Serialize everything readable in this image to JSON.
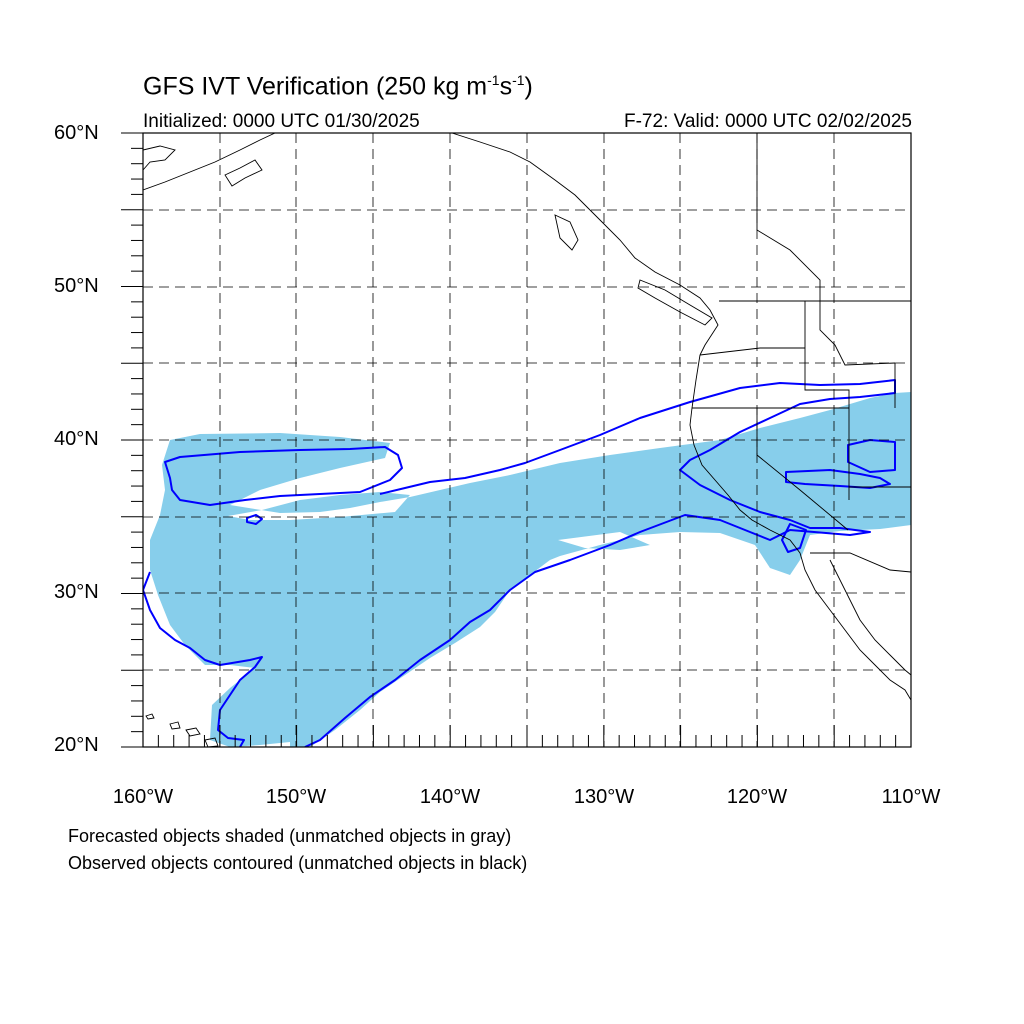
{
  "title_main": "GFS IVT Verification (250 kg m",
  "title_exp1": "-1",
  "title_mid": "s",
  "title_exp2": "-1",
  "title_close": ")",
  "initialized": "Initialized: 0000 UTC 01/30/2025",
  "valid": "F-72: Valid: 0000 UTC 02/02/2025",
  "lat_labels": [
    "60°N",
    "50°N",
    "40°N",
    "30°N",
    "20°N"
  ],
  "lon_labels": [
    "160°W",
    "150°W",
    "140°W",
    "130°W",
    "120°W",
    "110°W"
  ],
  "footnote_1": "Forecasted objects shaded (unmatched objects in gray)",
  "footnote_2": "Observed objects contoured (unmatched objects in black)",
  "colors": {
    "forecast_fill": "#87ceeb",
    "observed_contour": "#0000ff",
    "coastline": "#000000",
    "grid": "#000000"
  },
  "map_extent": {
    "lon_min": -160,
    "lon_max": -110,
    "lat_min": 20,
    "lat_max": 60
  }
}
